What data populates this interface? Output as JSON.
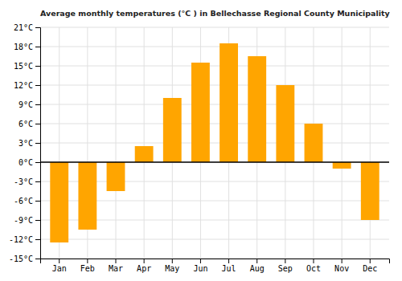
{
  "chart_data": {
    "type": "bar",
    "title": "Average monthly temperatures (°C ) in Bellechasse Regional County Municipality",
    "categories": [
      "Jan",
      "Feb",
      "Mar",
      "Apr",
      "May",
      "Jun",
      "Jul",
      "Aug",
      "Sep",
      "Oct",
      "Nov",
      "Dec"
    ],
    "values": [
      -12.5,
      -10.5,
      -4.5,
      2.5,
      10.0,
      15.5,
      18.5,
      16.5,
      12.0,
      6.0,
      -1.0,
      -9.0
    ],
    "color": "#FFA500",
    "ylim": [
      -15,
      21
    ],
    "yticks": [
      {
        "value": -15,
        "label": "-15°C"
      },
      {
        "value": -12,
        "label": "-12°C"
      },
      {
        "value": -9,
        "label": "-9°C"
      },
      {
        "value": -6,
        "label": "-6°C"
      },
      {
        "value": -3,
        "label": "-3°C"
      },
      {
        "value": 0,
        "label": "0°C"
      },
      {
        "value": 3,
        "label": "3°C"
      },
      {
        "value": 6,
        "label": "6°C"
      },
      {
        "value": 9,
        "label": "9°C"
      },
      {
        "value": 12,
        "label": "12°C"
      },
      {
        "value": 15,
        "label": "15°C"
      },
      {
        "value": 18,
        "label": "18°C"
      },
      {
        "value": 21,
        "label": "21°C"
      }
    ],
    "grid": true
  }
}
